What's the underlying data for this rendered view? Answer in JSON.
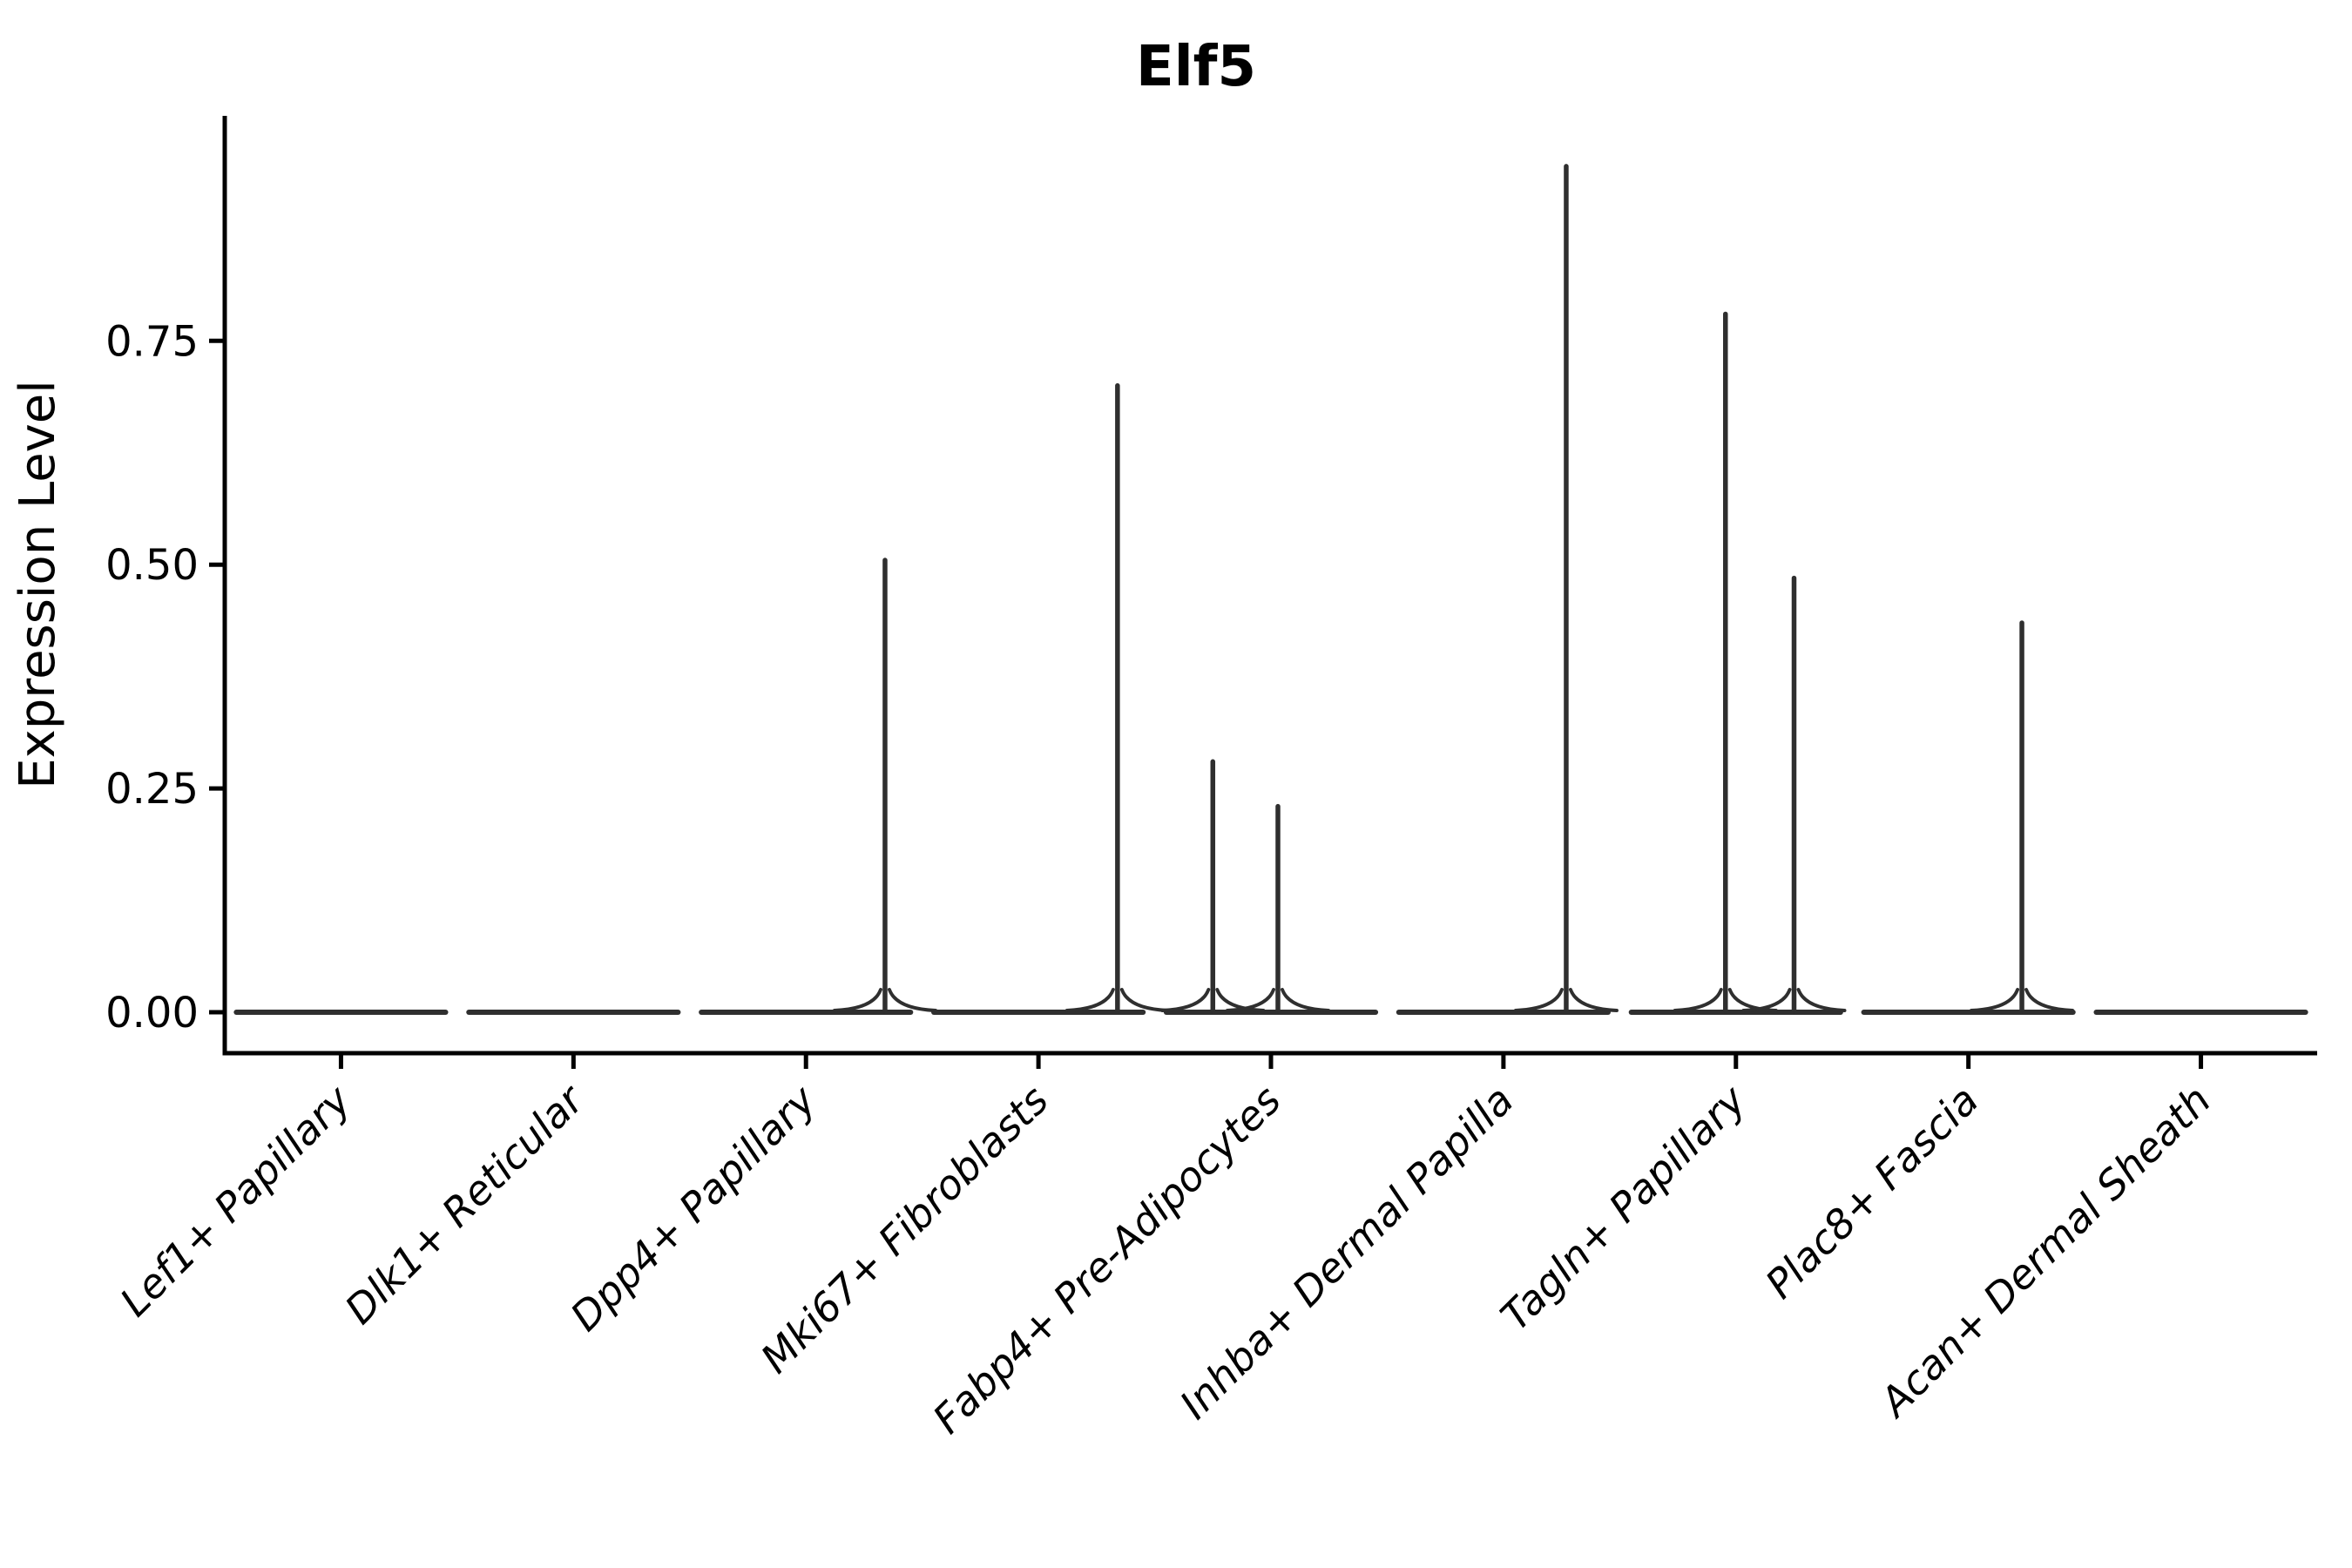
{
  "figure": {
    "title": "Elf5",
    "ylabel": "Expression Level",
    "xlabel": ""
  },
  "chart_data": {
    "type": "violin",
    "title": "Elf5",
    "xlabel": "",
    "ylabel": "Expression Level",
    "ylim": [
      0,
      1.0
    ],
    "grid": false,
    "legend": "none",
    "y_ticks": [
      {
        "label": "0.00",
        "value": 0.0
      },
      {
        "label": "0.25",
        "value": 0.25
      },
      {
        "label": "0.50",
        "value": 0.5
      },
      {
        "label": "0.75",
        "value": 0.75
      }
    ],
    "categories": [
      "Lef1+ Papillary",
      "Dlk1+ Reticular",
      "Dpp4+ Papillary",
      "Mki67+ Fibroblasts",
      "Fabp4+ Pre-Adipocytes",
      "Inhba+ Dermal Papilla",
      "Tagln+ Papillary",
      "Plac8+ Fascia",
      "Acan+ Dermal Sheath"
    ],
    "series": [
      {
        "name": "Lef1+ Papillary",
        "baseline_value": 0,
        "spikes": []
      },
      {
        "name": "Dlk1+ Reticular",
        "baseline_value": 0,
        "spikes": []
      },
      {
        "name": "Dpp4+ Papillary",
        "baseline_value": 0,
        "spikes": [
          {
            "value": 0.505,
            "offset_frac": 0.34
          }
        ]
      },
      {
        "name": "Mki67+ Fibroblasts",
        "baseline_value": 0,
        "spikes": [
          {
            "value": 0.7,
            "offset_frac": 0.34
          }
        ]
      },
      {
        "name": "Fabp4+ Pre-Adipocytes",
        "baseline_value": 0,
        "spikes": [
          {
            "value": 0.28,
            "offset_frac": -0.25
          },
          {
            "value": 0.23,
            "offset_frac": 0.03
          }
        ]
      },
      {
        "name": "Inhba+ Dermal Papilla",
        "baseline_value": 0,
        "spikes": [
          {
            "value": 0.945,
            "offset_frac": 0.27
          }
        ]
      },
      {
        "name": "Tagln+ Papillary",
        "baseline_value": 0,
        "spikes": [
          {
            "value": 0.78,
            "offset_frac": -0.045
          },
          {
            "value": 0.485,
            "offset_frac": 0.25
          }
        ]
      },
      {
        "name": "Plac8+ Fascia",
        "baseline_value": 0,
        "spikes": [
          {
            "value": 0.435,
            "offset_frac": 0.23
          }
        ]
      },
      {
        "name": "Acan+ Dermal Sheath",
        "baseline_value": 0,
        "spikes": []
      }
    ],
    "violin_width_frac": 0.9
  },
  "colors": {
    "background": "#ffffff",
    "axis": "#000000",
    "violin_stroke": "#2f2f2f",
    "text": "#000000"
  }
}
